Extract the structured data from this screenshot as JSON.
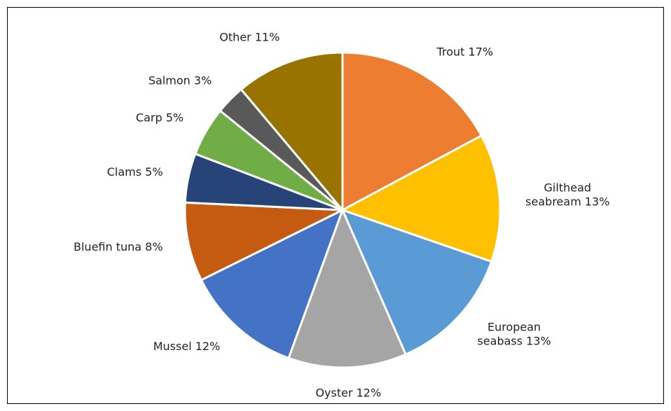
{
  "chart_data": {
    "type": "pie",
    "values": [
      17,
      13,
      13,
      12,
      12,
      8,
      5,
      5,
      3,
      11
    ],
    "value_labels": [
      [
        "Trout 17%"
      ],
      [
        "Gilthead",
        "seabream 13%"
      ],
      [
        "European",
        "seabass 13%"
      ],
      [
        "Oyster 12%"
      ],
      [
        "Mussel 12%"
      ],
      [
        "Bluefin tuna 8%"
      ],
      [
        "Clams 5%"
      ],
      [
        "Carp 5%"
      ],
      [
        "Salmon 3%"
      ],
      [
        "Other 11%"
      ]
    ],
    "colors": [
      "#ED7D31",
      "#FFC000",
      "#5B9BD5",
      "#A5A5A5",
      "#4472C4",
      "#C55A11",
      "#264478",
      "#70AD47",
      "#595959",
      "#997300"
    ]
  }
}
